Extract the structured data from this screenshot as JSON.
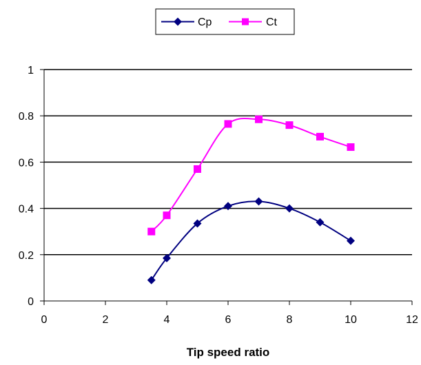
{
  "chart_data": {
    "type": "line",
    "xlabel": "Tip speed ratio",
    "ylabel": "",
    "title": "",
    "xlim": [
      0,
      12
    ],
    "ylim": [
      0,
      1
    ],
    "x_ticks": [
      "0",
      "2",
      "4",
      "6",
      "8",
      "10",
      "12"
    ],
    "y_ticks": [
      "0",
      "0.2",
      "0.4",
      "0.6",
      "0.8",
      "1"
    ],
    "grid": "horizontal",
    "legend_position": "top",
    "series": [
      {
        "name": "Cp",
        "color": "#000080",
        "marker": "diamond",
        "x": [
          3.5,
          4,
          5,
          6,
          7,
          8,
          9,
          10
        ],
        "values": [
          0.09,
          0.185,
          0.335,
          0.41,
          0.43,
          0.4,
          0.34,
          0.26
        ]
      },
      {
        "name": "Ct",
        "color": "#FF00FF",
        "marker": "square",
        "x": [
          3.5,
          4,
          5,
          6,
          7,
          8,
          9,
          10
        ],
        "values": [
          0.3,
          0.37,
          0.57,
          0.765,
          0.785,
          0.76,
          0.71,
          0.665
        ]
      }
    ]
  }
}
